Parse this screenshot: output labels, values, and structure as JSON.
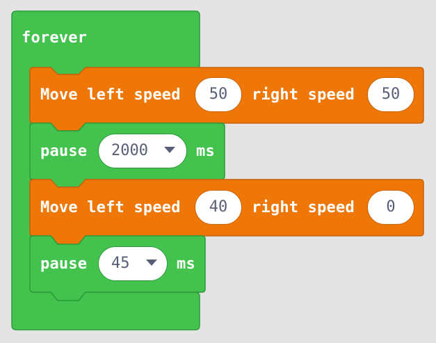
{
  "colors": {
    "background": "#e4e4e4",
    "loop_block": "#43c24e",
    "loop_border": "#2c9a3c",
    "motor_block": "#ee7707",
    "motor_border": "#c7610c",
    "text": "#ffffff",
    "field_text": "#575e75"
  },
  "forever": {
    "label": "forever"
  },
  "move1": {
    "left_label": "Move left speed",
    "left_value": "50",
    "right_label": "right speed",
    "right_value": "50"
  },
  "pause1": {
    "label": "pause",
    "value": "2000",
    "unit": "ms"
  },
  "move2": {
    "left_label": "Move left speed",
    "left_value": "40",
    "right_label": "right speed",
    "right_value": "0"
  },
  "pause2": {
    "label": "pause",
    "value": "45",
    "unit": "ms"
  }
}
